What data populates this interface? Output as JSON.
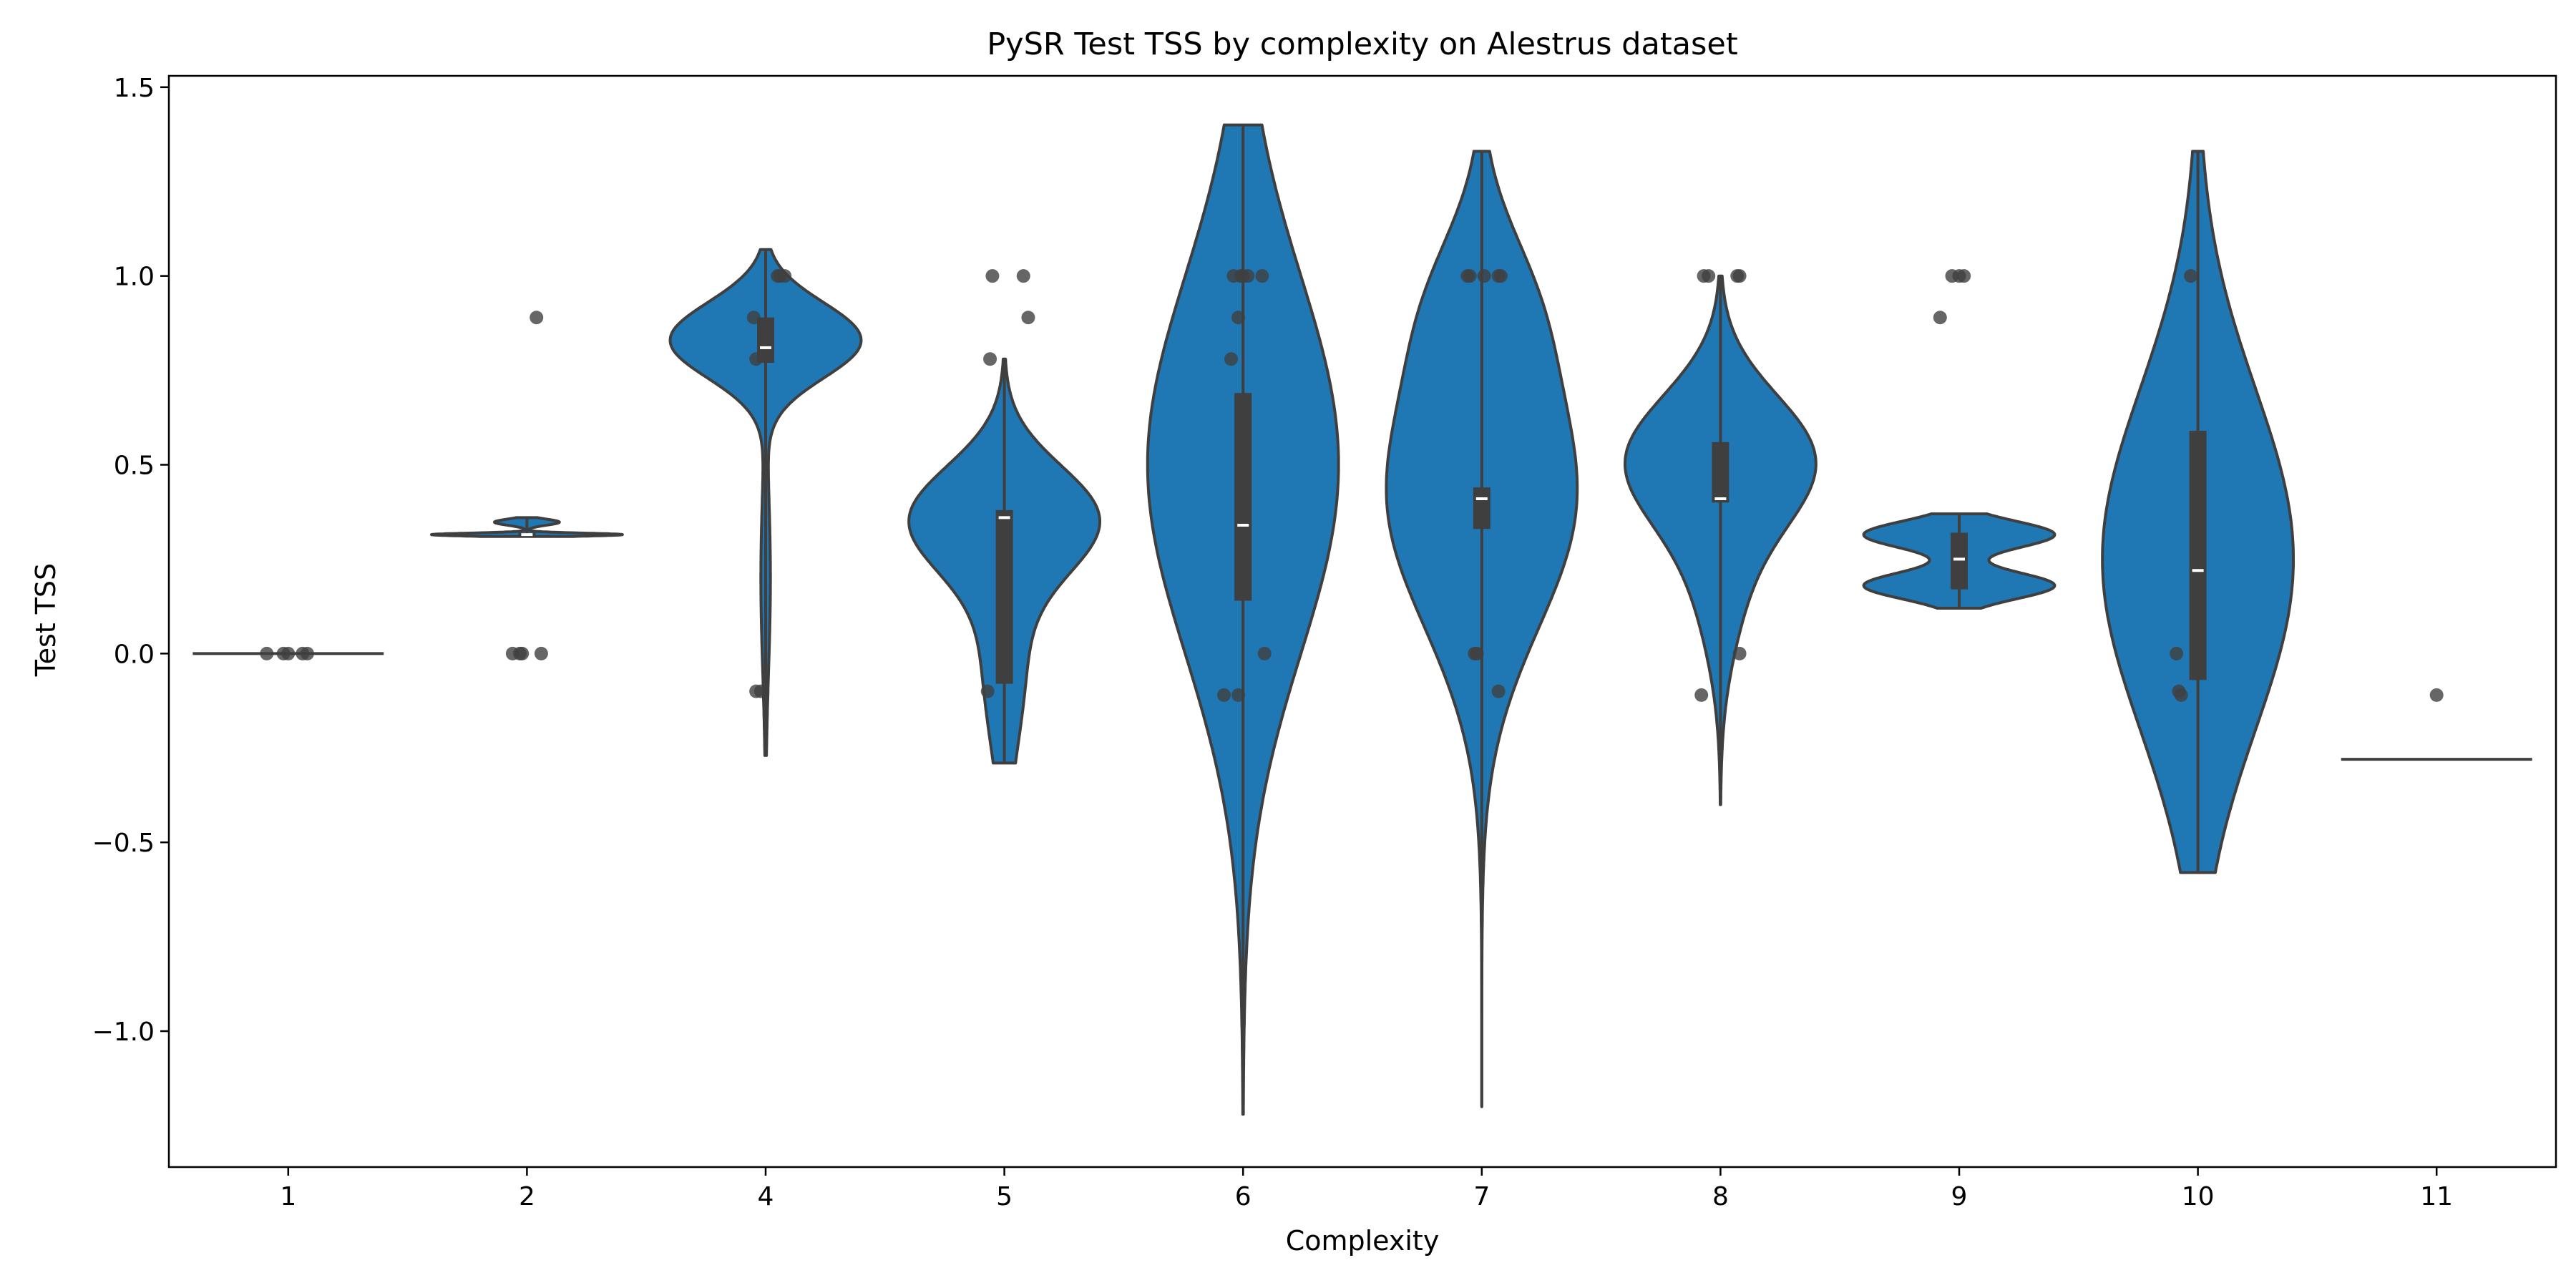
{
  "chart_data": {
    "type": "violin",
    "title": "PySR Test TSS by complexity on Alestrus dataset",
    "xlabel": "Complexity",
    "ylabel": "Test TSS",
    "ylim": [
      -1.36,
      1.53
    ],
    "yticks": [
      -1.0,
      -0.5,
      0.0,
      0.5,
      1.0,
      1.5
    ],
    "ytick_labels": [
      "−1.0",
      "−0.5",
      "0.0",
      "0.5",
      "1.0",
      "1.5"
    ],
    "grid": false,
    "legend": "none",
    "colors": {
      "violin_fill": "#1f77b4",
      "violin_edge": "#3f3f3f",
      "box": "#3f3f3f",
      "median": "#ffffff",
      "points": "#404040"
    },
    "categories": [
      "1",
      "2",
      "4",
      "5",
      "6",
      "7",
      "8",
      "9",
      "10",
      "11"
    ],
    "violins": [
      {
        "category": "1",
        "kde_min": 0.0,
        "kde_max": 0.0,
        "flat": true,
        "width_factor": 0.8
      },
      {
        "category": "2",
        "kde_min": 0.31,
        "kde_max": 0.36,
        "q1": 0.31,
        "median": 0.315,
        "q3": 0.32,
        "modes": [
          [
            0.315,
            0.004,
            1.0
          ],
          [
            0.348,
            0.008,
            0.34
          ]
        ]
      },
      {
        "category": "4",
        "kde_min": -0.27,
        "kde_max": 1.07,
        "q1": 0.77,
        "median": 0.81,
        "q3": 0.89,
        "modes": [
          [
            0.83,
            0.1,
            1.0
          ],
          [
            0.2,
            0.25,
            0.05
          ]
        ]
      },
      {
        "category": "5",
        "kde_min": -0.29,
        "kde_max": 0.78,
        "q1": -0.08,
        "median": 0.36,
        "q3": 0.38,
        "modes": [
          [
            0.36,
            0.14,
            1.0
          ],
          [
            0.0,
            0.25,
            0.25
          ]
        ]
      },
      {
        "category": "6",
        "kde_min": -1.22,
        "kde_max": 1.4,
        "q1": 0.14,
        "median": 0.34,
        "q3": 0.69,
        "modes": [
          [
            0.5,
            0.5,
            1.0
          ]
        ]
      },
      {
        "category": "7",
        "kde_min": -1.2,
        "kde_max": 1.33,
        "q1": 0.33,
        "median": 0.41,
        "q3": 0.44,
        "modes": [
          [
            0.42,
            0.35,
            1.0
          ],
          [
            0.95,
            0.2,
            0.3
          ]
        ]
      },
      {
        "category": "8",
        "kde_min": -0.4,
        "kde_max": 1.0,
        "q1": 0.4,
        "median": 0.41,
        "q3": 0.56,
        "modes": [
          [
            0.52,
            0.17,
            1.0
          ],
          [
            0.2,
            0.2,
            0.25
          ]
        ]
      },
      {
        "category": "9",
        "kde_min": 0.12,
        "kde_max": 0.37,
        "q1": 0.17,
        "median": 0.25,
        "q3": 0.32,
        "modes": [
          [
            0.18,
            0.035,
            1.0
          ],
          [
            0.315,
            0.035,
            1.0
          ]
        ]
      },
      {
        "category": "10",
        "kde_min": -0.58,
        "kde_max": 1.33,
        "q1": -0.07,
        "median": 0.22,
        "q3": 0.59,
        "modes": [
          [
            0.25,
            0.45,
            1.0
          ]
        ]
      },
      {
        "category": "11",
        "kde_min": -0.28,
        "kde_max": -0.28,
        "flat": true,
        "width_factor": 0.8
      }
    ],
    "points": [
      {
        "category": "1",
        "values": [
          0.0,
          0.0,
          0.0,
          0.0,
          0.0
        ],
        "offsets": [
          -0.09,
          -0.02,
          0.0,
          0.06,
          0.08
        ]
      },
      {
        "category": "2",
        "values": [
          0.89,
          0.0,
          0.0,
          0.0,
          0.0
        ],
        "offsets": [
          0.04,
          -0.06,
          -0.03,
          -0.02,
          0.06
        ]
      },
      {
        "category": "4",
        "values": [
          0.89,
          0.78,
          -0.1,
          -0.1,
          1.0,
          1.0,
          1.0
        ],
        "offsets": [
          -0.05,
          -0.04,
          -0.04,
          -0.02,
          0.05,
          0.06,
          0.08
        ]
      },
      {
        "category": "5",
        "values": [
          1.0,
          1.0,
          0.89,
          0.78,
          -0.1
        ],
        "offsets": [
          -0.05,
          0.08,
          0.1,
          -0.06,
          -0.07
        ]
      },
      {
        "category": "6",
        "values": [
          1.0,
          1.0,
          1.0,
          1.0,
          1.0,
          0.89,
          0.78,
          0.0,
          -0.11,
          -0.11
        ],
        "offsets": [
          -0.04,
          -0.01,
          0.0,
          0.02,
          0.08,
          -0.02,
          -0.05,
          0.09,
          -0.08,
          -0.02
        ]
      },
      {
        "category": "7",
        "values": [
          1.0,
          1.0,
          1.0,
          1.0,
          1.0,
          0.0,
          0.0,
          -0.1
        ],
        "offsets": [
          -0.06,
          -0.05,
          0.01,
          0.07,
          0.08,
          -0.03,
          -0.02,
          0.07
        ]
      },
      {
        "category": "8",
        "values": [
          1.0,
          1.0,
          1.0,
          1.0,
          -0.11,
          0.0
        ],
        "offsets": [
          -0.07,
          -0.05,
          0.07,
          0.08,
          -0.08,
          0.08
        ]
      },
      {
        "category": "9",
        "values": [
          1.0,
          1.0,
          1.0,
          0.89
        ],
        "offsets": [
          -0.03,
          0.0,
          0.02,
          -0.08
        ]
      },
      {
        "category": "10",
        "values": [
          1.0,
          0.0,
          -0.1,
          -0.11
        ],
        "offsets": [
          -0.03,
          -0.09,
          -0.08,
          -0.07
        ]
      },
      {
        "category": "11",
        "values": [
          -0.11
        ],
        "offsets": [
          0.0
        ]
      }
    ]
  }
}
